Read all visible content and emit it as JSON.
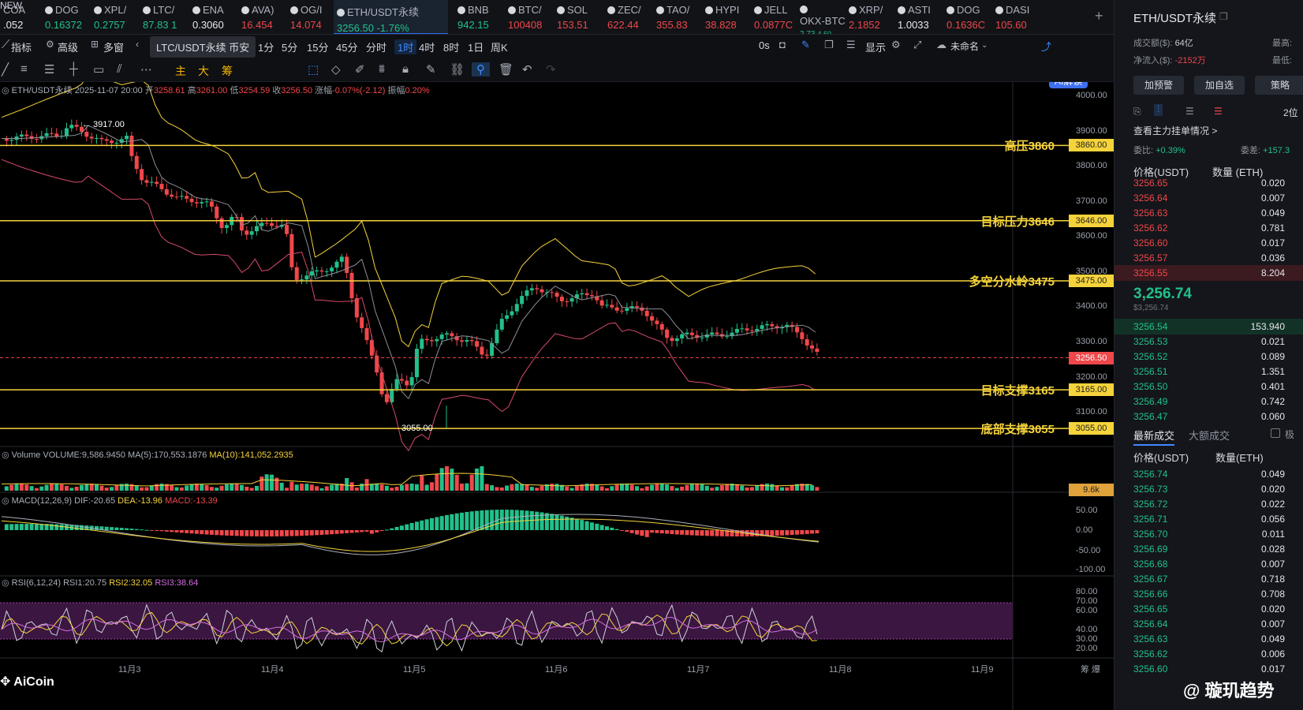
{
  "ticker": [
    {
      "name": "COA",
      "price": ".052",
      "dir": "wh"
    },
    {
      "name": "DOG",
      "price": "0.16372",
      "dir": "up"
    },
    {
      "name": "XPL/",
      "price": "0.2757",
      "dir": "up"
    },
    {
      "name": "LTC/",
      "price": "87.83 1",
      "dir": "up"
    },
    {
      "name": "ENA",
      "price": "0.3060",
      "dir": "wh"
    },
    {
      "name": "AVA)",
      "price": "16.454",
      "dir": "dn"
    },
    {
      "name": "OG/I",
      "price": "14.074",
      "dir": "dn"
    },
    {
      "name": "ETH/USDT永续",
      "price": "3256.50 -1.76%",
      "dir": "up",
      "active": true
    },
    {
      "name": "BNB",
      "price": "942.15",
      "dir": "up"
    },
    {
      "name": "BTC/",
      "price": "100408",
      "dir": "dn"
    },
    {
      "name": "SOL",
      "price": "153.51",
      "dir": "dn"
    },
    {
      "name": "ZEC/",
      "price": "622.44",
      "dir": "dn"
    },
    {
      "name": "TAO/",
      "price": "355.83",
      "dir": "dn"
    },
    {
      "name": "HYPI",
      "price": "38.828",
      "dir": "dn"
    },
    {
      "name": "JELL",
      "price": "0.0877C",
      "dir": "dn"
    },
    {
      "name": "OKX-BTC",
      "price": "2.73",
      "extra": "4.60",
      "dir": "up"
    },
    {
      "name": "XRP/",
      "price": "2.1852",
      "dir": "dn"
    },
    {
      "name": "ASTI",
      "price": "1.0033",
      "dir": "wh"
    },
    {
      "name": "DOG",
      "price": "0.1636C",
      "dir": "dn"
    },
    {
      "name": "DASI",
      "price": "105.60",
      "dir": "dn"
    }
  ],
  "ticker_new_badge": "NEW",
  "toolbar": {
    "indicator": "指标",
    "advanced": "高级",
    "multi": "多窗",
    "tooltip": "LTC/USDT永续 币安",
    "timeframes": [
      "1分",
      "5分",
      "15分",
      "45分",
      "分时",
      "1时",
      "4时",
      "8时",
      "1日",
      "周K"
    ],
    "selected_tf": "1时",
    "zero_s": "0s",
    "display": "显示",
    "unnamed": "未命名",
    "ai": "AI解读"
  },
  "drawbar": {
    "main": "主",
    "big": "大",
    "chip": "筹"
  },
  "chart": {
    "symbol_line": "ETH/USDT永续 2025-11-07 20:00",
    "o_label": "开",
    "o": "3258.61",
    "h_label": "高",
    "h": "3261.00",
    "l_label": "低",
    "l": "3254.59",
    "c_label": "收",
    "c": "3256.50",
    "chg_label": "涨幅",
    "chg": "-0.07%(-2.12)",
    "amp_label": "振幅",
    "amp": "0.20%",
    "price_axis": [
      "4000.00",
      "3900.00",
      "3800.00",
      "3700.00",
      "3600.00",
      "3500.00",
      "3400.00",
      "3300.00",
      "3200.00",
      "3100.00"
    ],
    "levels": [
      {
        "label": "高压3860",
        "value": "3860.00"
      },
      {
        "label": "目标压力3646",
        "value": "3646.00"
      },
      {
        "label": "多空分水岭3475",
        "value": "3475.00"
      },
      {
        "label": "目标支撑3165",
        "value": "3165.00"
      },
      {
        "label": "底部支撑3055",
        "value": "3055.00"
      }
    ],
    "current_price_tag": "3256.50",
    "high_mark": "← 3917.00",
    "low_mark": "3055.00",
    "x_labels": [
      "11月3",
      "11月4",
      "11月5",
      "11月6",
      "11月7",
      "11月8",
      "11月9"
    ],
    "x_extra": "筹  爆"
  },
  "volume": {
    "label": "Volume VOLUME:9,586.9450",
    "ma5": "MA(5):170,553.1876",
    "ma10": "MA(10):141,052.2935",
    "tag": "9.6k"
  },
  "macd": {
    "label": "MACD(12,26,9)",
    "dif": "DIF:-20.65",
    "dea": "DEA:-13.96",
    "macd": "MACD:-13.39",
    "axis": [
      "50.00",
      "0.00",
      "-50.00",
      "-100.00"
    ]
  },
  "rsi": {
    "label": "RSI(6,12,24)",
    "rsi1": "RSI1:20.75",
    "rsi2": "RSI2:32.05",
    "rsi3": "RSI3:38.64",
    "axis": [
      "80.00",
      "70.00",
      "60.00",
      "40.00",
      "30.00",
      "20.00"
    ]
  },
  "brand": "AiCoin",
  "watermark": "@ 璇玑趋势",
  "panel": {
    "title": "ETH/USDT永续",
    "turnover_label": "成交额($):",
    "turnover": "64亿",
    "netflow_label": "净流入($):",
    "netflow": "-2152万",
    "high_label": "最高:",
    "low_label": "最低:",
    "btn_alert": "加预警",
    "btn_fav": "加自选",
    "btn_strategy": "策略",
    "depth_sel": "2位",
    "main_orders": "查看主力挂单情况 >",
    "wei_bi_label": "委比:",
    "wei_bi": "+0.39%",
    "wei_cha_label": "委差:",
    "wei_cha": "+157.3",
    "col_price": "价格(USDT)",
    "col_qty": "数量 (ETH)",
    "asks": [
      [
        "3256.65",
        "0.020"
      ],
      [
        "3256.64",
        "0.007"
      ],
      [
        "3256.63",
        "0.049"
      ],
      [
        "3256.62",
        "0.781"
      ],
      [
        "3256.60",
        "0.017"
      ],
      [
        "3256.57",
        "0.036"
      ],
      [
        "3256.55",
        "8.204"
      ]
    ],
    "last_price": "3,256.74",
    "last_usd": "$3,256.74",
    "bids": [
      [
        "3256.54",
        "153.940"
      ],
      [
        "3256.53",
        "0.021"
      ],
      [
        "3256.52",
        "0.089"
      ],
      [
        "3256.51",
        "1.351"
      ],
      [
        "3256.50",
        "0.401"
      ],
      [
        "3256.49",
        "0.742"
      ],
      [
        "3256.47",
        "0.060"
      ]
    ],
    "tab_latest": "最新成交",
    "tab_big": "大额成交",
    "tab_extreme": "极",
    "trades_col_price": "价格(USDT)",
    "trades_col_qty": "数量(ETH)",
    "trades": [
      [
        "3256.74",
        "0.049"
      ],
      [
        "3256.73",
        "0.020"
      ],
      [
        "3256.72",
        "0.022"
      ],
      [
        "3256.71",
        "0.056"
      ],
      [
        "3256.70",
        "0.011"
      ],
      [
        "3256.69",
        "0.028"
      ],
      [
        "3256.68",
        "0.007"
      ],
      [
        "3256.67",
        "0.718"
      ],
      [
        "3256.66",
        "0.708"
      ],
      [
        "3256.65",
        "0.020"
      ],
      [
        "3256.64",
        "0.007"
      ],
      [
        "3256.63",
        "0.049"
      ],
      [
        "3256.62",
        "0.006"
      ],
      [
        "3256.60",
        "0.017"
      ]
    ]
  }
}
